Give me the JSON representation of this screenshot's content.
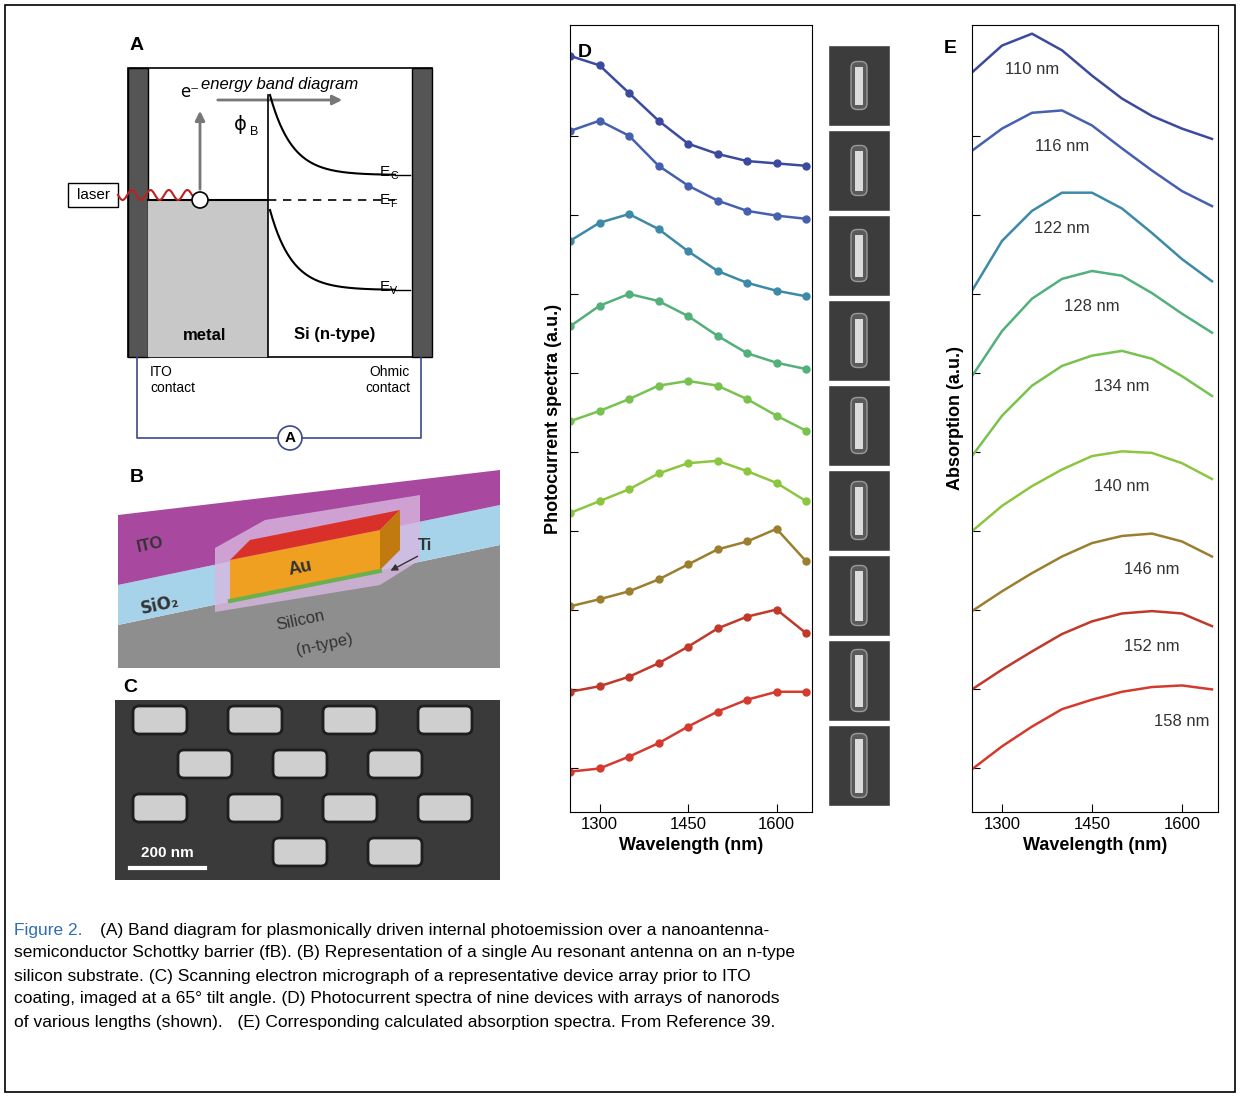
{
  "diagram_A": {
    "label": "A",
    "title": "energy band diagram",
    "laser": "laser",
    "electron": "e⁻",
    "barrier": {
      "symbol": "ϕ",
      "subscript": "B"
    },
    "levels": [
      {
        "symbol": "E",
        "subscript": "C"
      },
      {
        "symbol": "E",
        "subscript": "F"
      },
      {
        "symbol": "E",
        "subscript": "V"
      }
    ],
    "regions": [
      "metal",
      "Si (n-type)"
    ],
    "contacts": [
      "ITO\ncontact",
      "Ohmic\ncontact"
    ],
    "meter": "A"
  },
  "illustration_B": {
    "label": "B",
    "ito": "ITO",
    "oxide": "SiO₂",
    "metal": "Au",
    "adhesion": "Ti",
    "substrate": [
      "Silicon",
      "(n-type)"
    ]
  },
  "micrograph_C": {
    "label": "C",
    "scale_bar": "200 nm"
  },
  "chart_data": [
    {
      "type": "line",
      "label": "D",
      "xlabel": "Wavelength (nm)",
      "ylabel": "Photocurrent spectra (a.u.)",
      "x": [
        1250,
        1300,
        1350,
        1400,
        1450,
        1500,
        1550,
        1600,
        1650
      ],
      "xlim": [
        1250,
        1660
      ],
      "xticks": [
        1300,
        1450,
        1600
      ],
      "ylim": [
        0.45,
        10.4
      ],
      "yticks": [
        1,
        2,
        3,
        4,
        5,
        6,
        7,
        8,
        9
      ],
      "tick_labels": "x",
      "grid": false,
      "marker": "o",
      "line_style": "solid",
      "series": [
        {
          "color": "#3b4a9e",
          "values": [
            10.01,
            9.89,
            9.54,
            9.19,
            8.9,
            8.77,
            8.68,
            8.65,
            8.62
          ]
        },
        {
          "color": "#4660b0",
          "values": [
            9.06,
            9.19,
            9.0,
            8.62,
            8.37,
            8.18,
            8.05,
            7.99,
            7.95
          ]
        },
        {
          "color": "#3d8aa8",
          "values": [
            7.67,
            7.9,
            8.01,
            7.82,
            7.54,
            7.29,
            7.14,
            7.04,
            6.97
          ]
        },
        {
          "color": "#52b07a",
          "values": [
            6.59,
            6.85,
            7.0,
            6.91,
            6.72,
            6.47,
            6.25,
            6.13,
            6.05
          ]
        },
        {
          "color": "#78c250",
          "values": [
            5.39,
            5.52,
            5.67,
            5.84,
            5.9,
            5.84,
            5.67,
            5.46,
            5.27
          ]
        },
        {
          "color": "#8cc63f",
          "values": [
            4.23,
            4.38,
            4.53,
            4.73,
            4.86,
            4.89,
            4.76,
            4.61,
            4.38
          ]
        },
        {
          "color": "#9b7f2f",
          "values": [
            3.05,
            3.14,
            3.24,
            3.39,
            3.58,
            3.77,
            3.87,
            4.03,
            3.62
          ]
        },
        {
          "color": "#c0392b",
          "values": [
            1.97,
            2.04,
            2.16,
            2.33,
            2.54,
            2.77,
            2.92,
            3.01,
            2.71
          ]
        },
        {
          "color": "#d43a2e",
          "values": [
            0.96,
            1.0,
            1.15,
            1.32,
            1.53,
            1.72,
            1.87,
            1.97,
            1.97
          ]
        }
      ]
    },
    {
      "type": "line",
      "label": "E",
      "xlabel": "Wavelength (nm)",
      "ylabel": "Absorption (a.u.)",
      "x": [
        1250,
        1300,
        1350,
        1400,
        1450,
        1500,
        1550,
        1600,
        1650
      ],
      "xlim": [
        1250,
        1660
      ],
      "xticks": [
        1300,
        1450,
        1600
      ],
      "ylim": [
        0.45,
        10.4
      ],
      "yticks": [
        1,
        2,
        3,
        4,
        5,
        6,
        7,
        8,
        9
      ],
      "tick_labels": "x",
      "grid": false,
      "marker": "none",
      "line_style": "solid",
      "series": [
        {
          "name": "110 nm",
          "color": "#3b4a9e",
          "values": [
            9.8,
            10.14,
            10.29,
            10.08,
            9.76,
            9.47,
            9.25,
            9.09,
            8.96
          ]
        },
        {
          "name": "116 nm",
          "color": "#4660b0",
          "values": [
            8.81,
            9.09,
            9.29,
            9.32,
            9.13,
            8.84,
            8.56,
            8.3,
            8.11
          ]
        },
        {
          "name": "122 nm",
          "color": "#3d8aa8",
          "values": [
            7.04,
            7.67,
            8.05,
            8.28,
            8.28,
            8.08,
            7.77,
            7.44,
            7.16
          ]
        },
        {
          "name": "128 nm",
          "color": "#52b07a",
          "values": [
            5.96,
            6.53,
            6.94,
            7.19,
            7.29,
            7.23,
            7.01,
            6.75,
            6.51
          ]
        },
        {
          "name": "134 nm",
          "color": "#78c250",
          "values": [
            4.95,
            5.46,
            5.84,
            6.09,
            6.22,
            6.28,
            6.18,
            5.96,
            5.71
          ]
        },
        {
          "name": "140 nm",
          "color": "#8cc63f",
          "values": [
            4.0,
            4.32,
            4.57,
            4.78,
            4.95,
            5.01,
            4.99,
            4.86,
            4.66
          ]
        },
        {
          "name": "146 nm",
          "color": "#9b7f2f",
          "values": [
            2.99,
            3.24,
            3.47,
            3.68,
            3.85,
            3.94,
            3.97,
            3.87,
            3.68
          ]
        },
        {
          "name": "152 nm",
          "color": "#c0392b",
          "values": [
            2.0,
            2.25,
            2.48,
            2.7,
            2.86,
            2.96,
            2.99,
            2.96,
            2.8
          ]
        },
        {
          "name": "158 nm",
          "color": "#d43a2e",
          "values": [
            0.99,
            1.28,
            1.53,
            1.75,
            1.87,
            1.97,
            2.03,
            2.05,
            2.0
          ]
        }
      ]
    }
  ],
  "caption": {
    "label": "Figure 2.",
    "lines": [
      "(A) Band diagram for plasmonically driven internal photoemission over a nanoantenna-",
      "semiconductor Schottky barrier (fB). (B) Representation of a single Au resonant antenna on an n-type",
      "silicon substrate. (C) Scanning electron micrograph of a representative device array prior to ITO",
      "coating, imaged at a 65° tilt angle. (D) Photocurrent spectra of nine devices with arrays of nanorods",
      "of various lengths (shown).   (E) Corresponding calculated absorption spectra. From Reference 39."
    ]
  }
}
